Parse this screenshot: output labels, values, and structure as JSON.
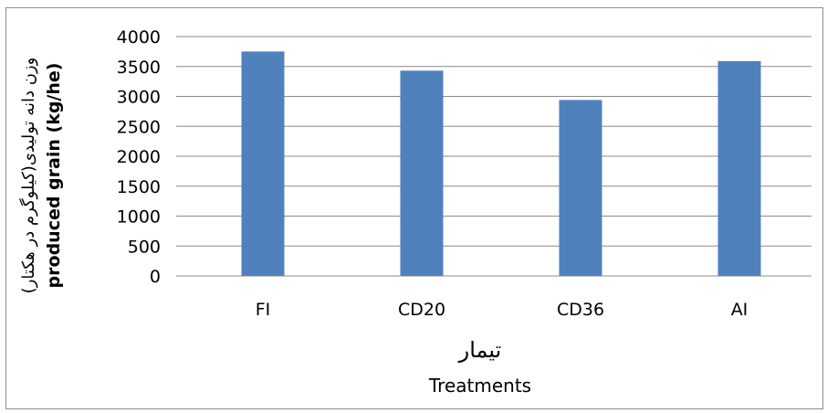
{
  "chart_data": {
    "type": "bar",
    "categories": [
      "FI",
      "CD20",
      "CD36",
      "AI"
    ],
    "values": [
      3750,
      3430,
      2940,
      3590
    ],
    "ylim": [
      0,
      4000
    ],
    "yticks": [
      "0",
      "500",
      "1000",
      "1500",
      "2000",
      "2500",
      "3000",
      "3500",
      "4000"
    ],
    "ytick_values": [
      0,
      500,
      1000,
      1500,
      2000,
      2500,
      3000,
      3500,
      4000
    ],
    "xlabel_fa": "تیمار",
    "xlabel_en": "Treatments",
    "ylabel_fa": "وزن دانه تولیدی(کیلوگرم در هکتار)",
    "ylabel_en": "produced grain (kg/he)",
    "grid": true,
    "legend": "none",
    "bar_color": "#4f81bd",
    "grid_color": "#8c8c8c"
  }
}
